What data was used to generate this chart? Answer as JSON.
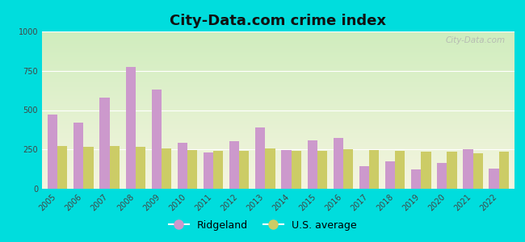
{
  "title": "City-Data.com crime index",
  "years": [
    2005,
    2006,
    2007,
    2008,
    2009,
    2010,
    2011,
    2012,
    2013,
    2014,
    2015,
    2016,
    2017,
    2018,
    2019,
    2020,
    2021,
    2022
  ],
  "ridgeland": [
    470,
    420,
    580,
    775,
    630,
    290,
    230,
    305,
    390,
    245,
    310,
    325,
    145,
    175,
    125,
    165,
    250,
    130
  ],
  "us_average": [
    270,
    265,
    270,
    265,
    255,
    245,
    240,
    240,
    255,
    240,
    240,
    250,
    245,
    240,
    235,
    235,
    225,
    235
  ],
  "ridgeland_color": "#cc99cc",
  "us_avg_color": "#cccc66",
  "background_outer": "#00dddd",
  "ylim": [
    0,
    1000
  ],
  "yticks": [
    0,
    250,
    500,
    750,
    1000
  ],
  "bar_width": 0.38,
  "watermark_text": "City-Data.com",
  "legend_ridgeland": "Ridgeland",
  "legend_us": "U.S. average",
  "title_fontsize": 13,
  "tick_fontsize": 7,
  "legend_fontsize": 9,
  "grad_top_left": "#d6edcc",
  "grad_bottom_right": "#f5f5e0"
}
